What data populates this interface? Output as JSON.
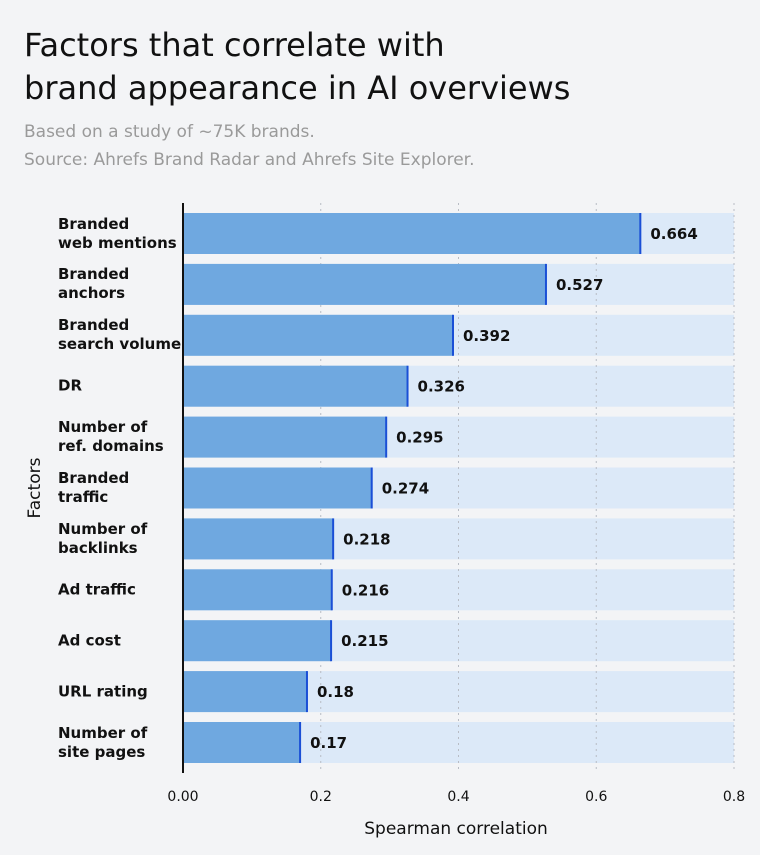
{
  "chart_data": {
    "type": "bar",
    "orientation": "horizontal",
    "title": "Factors that correlate with\nbrand appearance in AI overviews",
    "subtitle": "Based on a study of ~75K brands.\nSource: Ahrefs Brand Radar and Ahrefs Site Explorer.",
    "x_label": "Spearman correlation",
    "y_label": "Factors",
    "categories": [
      "Branded\nweb mentions",
      "Branded\nanchors",
      "Branded\nsearch volume",
      "DR",
      "Number of\nref. domains",
      "Branded\ntraffic",
      "Number of\nbacklinks",
      "Ad traffic",
      "Ad cost",
      "URL rating",
      "Number of\nsite pages"
    ],
    "values": [
      0.664,
      0.527,
      0.392,
      0.326,
      0.295,
      0.274,
      0.218,
      0.216,
      0.215,
      0.18,
      0.17
    ],
    "color": "#6fa8e0",
    "edge_color": "#1a4fd6",
    "track_color": "#dce9f8",
    "xlim": [
      0,
      0.8
    ],
    "xticks": [
      {
        "value": 0,
        "label": "0.00"
      },
      0.2,
      0.4,
      0.6,
      0.8
    ],
    "grid": true
  }
}
